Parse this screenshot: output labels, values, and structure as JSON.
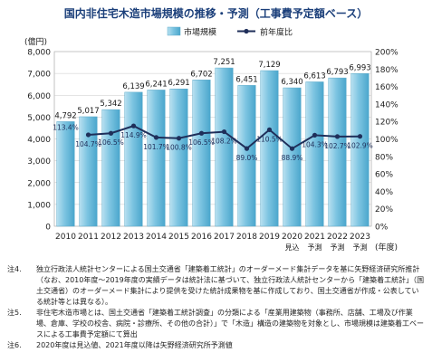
{
  "title": "国内非住宅木造市場規模の推移・予測（工事費予定額ベース）",
  "chart_data": {
    "type": "bar",
    "left_axis_unit": "(億円)",
    "x_axis_unit": "(年度)",
    "categories": [
      "2010",
      "2011",
      "2012",
      "2013",
      "2014",
      "2015",
      "2016",
      "2017",
      "2018",
      "2019",
      "2020",
      "2021",
      "2022",
      "2023"
    ],
    "category_sublabels": [
      "",
      "",
      "",
      "",
      "",
      "",
      "",
      "",
      "",
      "",
      "見込",
      "予測",
      "予測",
      "予測"
    ],
    "series": [
      {
        "name": "市場規模",
        "type": "bar",
        "axis": "left",
        "color": "#7cc4e1",
        "values": [
          4792,
          5017,
          5342,
          6139,
          6241,
          6291,
          6702,
          7251,
          6451,
          7129,
          6340,
          6613,
          6793,
          6993
        ],
        "value_labels": [
          "4,792",
          "5,017",
          "5,342",
          "6,139",
          "6,241",
          "6,291",
          "6,702",
          "7,251",
          "6,451",
          "7,129",
          "6,340",
          "6,613",
          "6,793",
          "6,993"
        ]
      },
      {
        "name": "前年度比",
        "type": "line",
        "axis": "right",
        "color": "#1f2f5a",
        "values": [
          null,
          104.7,
          106.5,
          114.9,
          101.7,
          100.8,
          106.5,
          108.2,
          89.0,
          110.5,
          88.9,
          104.3,
          102.7,
          102.9
        ],
        "value_labels": [
          "113.4%",
          "104.7%",
          "106.5%",
          "114.9%",
          "101.7%",
          "100.8%",
          "106.5%",
          "108.2%",
          "89.0%",
          "110.5%",
          "88.9%",
          "104.3%",
          "102.7%",
          "102.9%"
        ]
      }
    ],
    "ylim_left": [
      0,
      8000
    ],
    "ylim_right": [
      0,
      200
    ],
    "left_ticks": [
      "0",
      "1,000",
      "2,000",
      "3,000",
      "4,000",
      "5,000",
      "6,000",
      "7,000",
      "8,000"
    ],
    "right_ticks": [
      "0%",
      "20%",
      "40%",
      "60%",
      "80%",
      "100%",
      "120%",
      "140%",
      "160%",
      "180%",
      "200%"
    ],
    "grid": true,
    "legend_position": "top-center"
  },
  "notes": [
    {
      "label": "注4.",
      "text": "独立行政法人統計センターによる国土交通省「建築着工統計」のオーダーメード集計データを基に矢野経済研究所推計（なお、2010年度〜2019年度の実績データは統計法に基づいて、独立行政法人統計センターから「建築着工統計」（国土交通省）のオーダーメード集計により提供を受けた統計成果物を基に作成しており、国土交通省が作成・公表している統計等とは異なる）。"
    },
    {
      "label": "注5.",
      "text": "非住宅木造市場とは、国土交通省「建築着工統計調査」の分類による「産業用建築物（事務所、店舗、工場及び作業場、倉庫、学校の校舎、病院・診療所、その他の合計）」で「木造」構造の建築物を対象とし、市場規模は建築着工ベースによる工事費予定額にて算出"
    },
    {
      "label": "注6.",
      "text": "2020年度は見込値、2021年度以降は矢野経済研究所予測値"
    }
  ]
}
